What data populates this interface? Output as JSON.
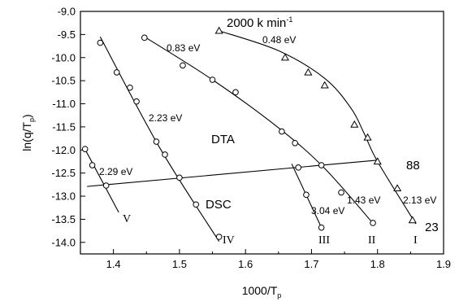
{
  "chart_data": {
    "type": "scatter",
    "xlabel": "1000/T",
    "xlabel_sub": "p",
    "ylabel": "ln(q/T",
    "ylabel_sub": "p",
    "ylabel_end": ")",
    "xlim": [
      1.35,
      1.9
    ],
    "ylim": [
      -14.25,
      -9.0
    ],
    "xticks": [
      1.4,
      1.5,
      1.6,
      1.7,
      1.8,
      1.9
    ],
    "yticks": [
      -9.0,
      -9.5,
      -10.0,
      -10.5,
      -11.0,
      -11.5,
      -12.0,
      -12.5,
      -13.0,
      -13.5,
      -14.0
    ],
    "grid": false,
    "series": [
      {
        "name": "I",
        "marker": "triangle",
        "activation_label": "0.48 eV",
        "activation_label_2": "2.13 eV",
        "points": [
          [
            1.56,
            -9.42
          ],
          [
            1.66,
            -10.0
          ],
          [
            1.695,
            -10.32
          ],
          [
            1.72,
            -10.6
          ],
          [
            1.765,
            -11.45
          ],
          [
            1.785,
            -11.73
          ],
          [
            1.8,
            -12.25
          ],
          [
            1.83,
            -12.83
          ],
          [
            1.853,
            -13.52
          ]
        ],
        "fit": [
          [
            1.56,
            -9.42
          ],
          [
            1.65,
            -9.85
          ],
          [
            1.72,
            -10.45
          ],
          [
            1.76,
            -11.1
          ],
          [
            1.78,
            -11.65
          ],
          [
            1.8,
            -12.25
          ],
          [
            1.858,
            -13.6
          ]
        ]
      },
      {
        "name": "II",
        "marker": "circle",
        "activation_label": "0.83 eV",
        "activation_label_2": "1.43 eV",
        "points": [
          [
            1.447,
            -9.57
          ],
          [
            1.505,
            -10.17
          ],
          [
            1.55,
            -10.48
          ],
          [
            1.585,
            -10.75
          ],
          [
            1.655,
            -11.6
          ],
          [
            1.675,
            -11.85
          ],
          [
            1.715,
            -12.33
          ],
          [
            1.745,
            -12.92
          ],
          [
            1.793,
            -13.58
          ]
        ],
        "fit": [
          [
            1.447,
            -9.55
          ],
          [
            1.55,
            -10.48
          ],
          [
            1.65,
            -11.52
          ],
          [
            1.72,
            -12.4
          ],
          [
            1.795,
            -13.62
          ]
        ]
      },
      {
        "name": "III",
        "marker": "circle",
        "activation_label": "3.04 eV",
        "points": [
          [
            1.68,
            -12.38
          ],
          [
            1.692,
            -12.97
          ],
          [
            1.715,
            -13.68
          ]
        ],
        "fit": [
          [
            1.67,
            -12.3
          ],
          [
            1.715,
            -13.68
          ]
        ]
      },
      {
        "name": "IV",
        "marker": "circle",
        "activation_label": "2.23 eV",
        "points": [
          [
            1.38,
            -9.68
          ],
          [
            1.405,
            -10.32
          ],
          [
            1.425,
            -10.65
          ],
          [
            1.435,
            -10.95
          ],
          [
            1.465,
            -11.82
          ],
          [
            1.478,
            -12.1
          ],
          [
            1.5,
            -12.6
          ],
          [
            1.525,
            -13.18
          ],
          [
            1.56,
            -13.88
          ]
        ],
        "fit": [
          [
            1.38,
            -9.55
          ],
          [
            1.47,
            -11.95
          ],
          [
            1.56,
            -13.98
          ]
        ]
      },
      {
        "name": "V",
        "marker": "circle",
        "activation_label": "2.29 eV",
        "points": [
          [
            1.357,
            -11.98
          ],
          [
            1.368,
            -12.33
          ],
          [
            1.389,
            -12.77
          ]
        ],
        "fit": [
          [
            1.355,
            -11.93
          ],
          [
            1.408,
            -13.35
          ]
        ]
      },
      {
        "name": "88 - 23",
        "marker": "none",
        "fit": [
          [
            1.36,
            -12.79
          ],
          [
            1.8,
            -12.22
          ]
        ]
      }
    ],
    "annotations": {
      "heating_rate": "2000 k min",
      "heating_rate_exp": "-1",
      "dta": "DTA",
      "dsc": "DSC",
      "label_88": "88",
      "label_23": "23"
    }
  }
}
